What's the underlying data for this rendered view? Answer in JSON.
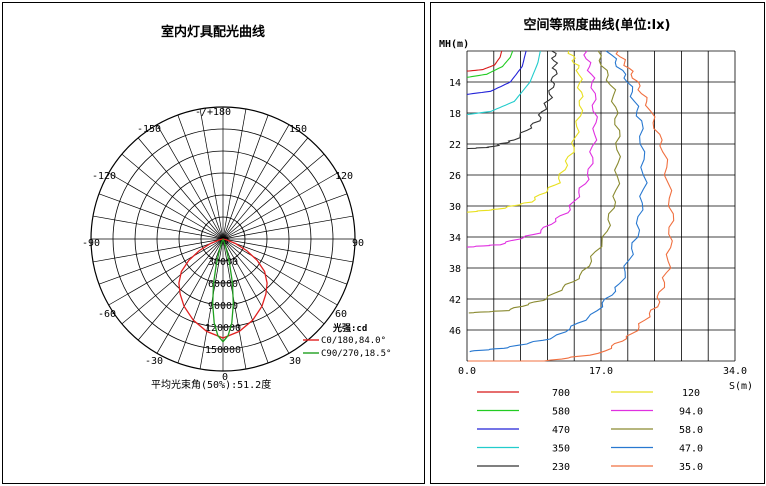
{
  "chart_data": [
    {
      "type": "polar",
      "title": "室内灯具配光曲线",
      "angle_labels": [
        "-/+180",
        "-150",
        "150",
        "-120",
        "120",
        "-90",
        "90",
        "-60",
        "60",
        "-30",
        "30",
        "0"
      ],
      "radial_labels": [
        "0",
        "30000",
        "60000",
        "90000",
        "120000",
        "150000"
      ],
      "rmax": 180000,
      "legend_title": "光强:cd",
      "series": [
        {
          "name": "C0/180,84.0°",
          "color": "#e02020",
          "points": [
            [
              0,
              135000
            ],
            [
              10,
              128000
            ],
            [
              20,
              118000
            ],
            [
              30,
              106000
            ],
            [
              38,
              95000
            ],
            [
              45,
              85000
            ],
            [
              52,
              72000
            ],
            [
              58,
              55000
            ],
            [
              64,
              36000
            ],
            [
              70,
              18000
            ],
            [
              76,
              5000
            ],
            [
              80,
              0
            ]
          ]
        },
        {
          "name": "C90/270,18.5°",
          "color": "#20a020",
          "points": [
            [
              0,
              140000
            ],
            [
              3,
              132000
            ],
            [
              6,
              115000
            ],
            [
              9,
              90000
            ],
            [
              12,
              62000
            ],
            [
              15,
              35000
            ],
            [
              18,
              15000
            ],
            [
              22,
              4000
            ],
            [
              26,
              0
            ]
          ]
        }
      ],
      "footer": "平均光束角(50%):51.2度"
    },
    {
      "type": "line",
      "title": "空间等照度曲线(单位:lx)",
      "ylabel": "MH(m)",
      "xlabel": "S(m)",
      "x_ticks": [
        "0.0",
        "17.0",
        "34.0"
      ],
      "y_ticks": [
        "14",
        "18",
        "22",
        "26",
        "30",
        "34",
        "38",
        "42",
        "46"
      ],
      "xlim": [
        0,
        34
      ],
      "ylim": [
        10,
        50
      ],
      "series": [
        {
          "name": "700",
          "color": "#d81818",
          "points": [
            [
              0,
              12.6
            ],
            [
              2,
              12.4
            ],
            [
              3.5,
              11.8
            ],
            [
              4.2,
              10.8
            ],
            [
              4.4,
              10
            ]
          ]
        },
        {
          "name": "580",
          "color": "#22cc22",
          "points": [
            [
              0,
              13.4
            ],
            [
              2.5,
              13
            ],
            [
              4.5,
              12
            ],
            [
              5.5,
              10.8
            ],
            [
              5.8,
              10
            ]
          ]
        },
        {
          "name": "470",
          "color": "#2222d8",
          "points": [
            [
              0,
              15.6
            ],
            [
              3,
              15.2
            ],
            [
              5.5,
              14
            ],
            [
              7,
              12
            ],
            [
              7.5,
              10
            ]
          ]
        },
        {
          "name": "350",
          "color": "#22cccc",
          "points": [
            [
              0,
              18.2
            ],
            [
              3,
              17.8
            ],
            [
              6,
              16.5
            ],
            [
              8,
              14
            ],
            [
              9,
              11.5
            ],
            [
              9.3,
              10
            ]
          ]
        },
        {
          "name": "230",
          "color": "#333333",
          "points": [
            [
              0,
              22.6
            ],
            [
              3,
              22.4
            ],
            [
              6,
              21.5
            ],
            [
              9,
              19
            ],
            [
              10.5,
              16
            ],
            [
              11.2,
              12.5
            ],
            [
              11,
              10
            ]
          ]
        },
        {
          "name": "120",
          "color": "#e8e020",
          "points": [
            [
              0,
              30.8
            ],
            [
              4,
              30.4
            ],
            [
              8,
              29.5
            ],
            [
              11.5,
              27
            ],
            [
              13.5,
              22.5
            ],
            [
              14.5,
              17
            ],
            [
              14.2,
              12.5
            ],
            [
              13,
              10
            ]
          ]
        },
        {
          "name": "94.0",
          "color": "#e030e0",
          "points": [
            [
              0,
              35.3
            ],
            [
              4,
              35
            ],
            [
              9,
              33.5
            ],
            [
              13,
              30.5
            ],
            [
              15.5,
              26
            ],
            [
              16.3,
              20
            ],
            [
              16,
              14
            ],
            [
              15,
              10
            ]
          ]
        },
        {
          "name": "58.0",
          "color": "#8a8a30",
          "points": [
            [
              0,
              43.8
            ],
            [
              5,
              43.5
            ],
            [
              10,
              42
            ],
            [
              14.5,
              39
            ],
            [
              17.5,
              34
            ],
            [
              19,
              28
            ],
            [
              19.2,
              21
            ],
            [
              18.5,
              15
            ],
            [
              16.5,
              10
            ]
          ]
        },
        {
          "name": "47.0",
          "color": "#2878d0",
          "points": [
            [
              0,
              48.8
            ],
            [
              5,
              48.3
            ],
            [
              11,
              47
            ],
            [
              16,
              44
            ],
            [
              19.5,
              40
            ],
            [
              21.5,
              34
            ],
            [
              22.5,
              27
            ],
            [
              22,
              19
            ],
            [
              20.5,
              14
            ],
            [
              18,
              10
            ]
          ]
        },
        {
          "name": "35.0",
          "color": "#f07040",
          "points": [
            [
              0,
              50
            ],
            [
              10,
              50
            ],
            [
              17,
              49
            ],
            [
              21,
              46.5
            ],
            [
              24,
              43
            ],
            [
              25.5,
              38
            ],
            [
              26,
              31
            ],
            [
              25,
              23
            ],
            [
              23,
              17
            ],
            [
              21,
              13
            ],
            [
              19,
              10
            ]
          ]
        }
      ]
    }
  ]
}
